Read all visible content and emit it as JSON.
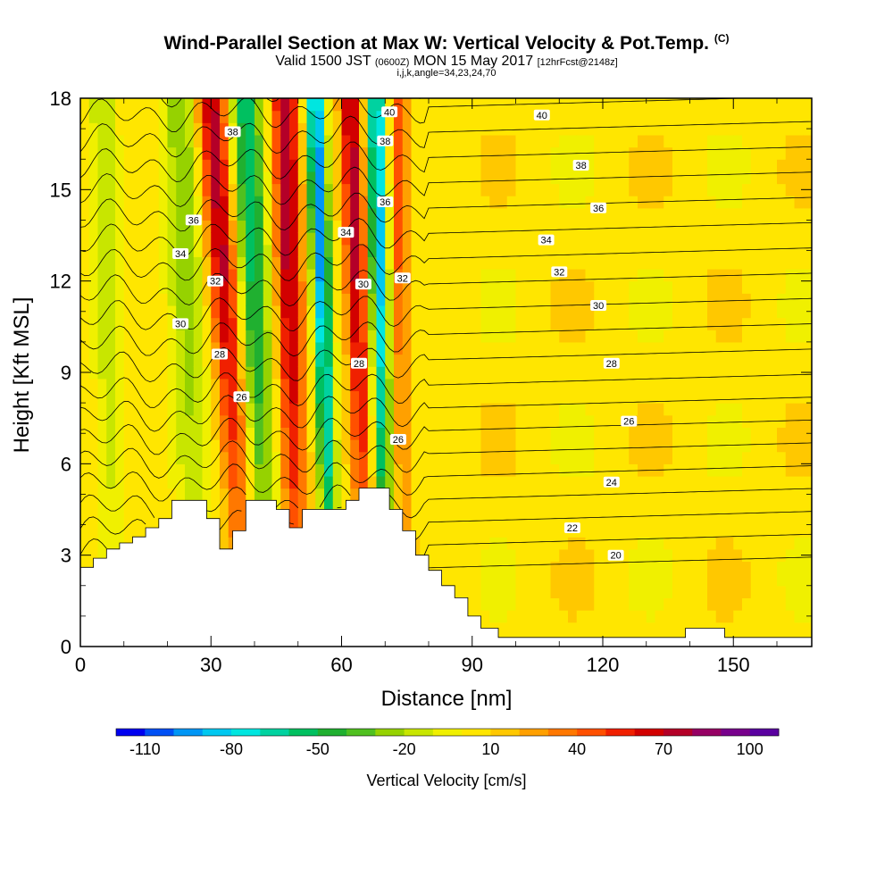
{
  "chart_data": {
    "type": "heatmap",
    "title": "Wind-Parallel Section at Max W: Vertical Velocity & Pot.Temp.",
    "title_mark": "(C)",
    "subtitle_main_a": "Valid 1500 JST",
    "subtitle_utc": "(0600Z)",
    "subtitle_main_b": "MON 15 May 2017",
    "subtitle_fcst": "[12hrFcst@2148z]",
    "subtitle2": "i,j,k,angle=34,23,24,70",
    "xlabel": "Distance [nm]",
    "ylabel": "Height [Kft MSL]",
    "xlim": [
      0,
      168
    ],
    "ylim": [
      0,
      18
    ],
    "x_ticks": [
      "0",
      "30",
      "60",
      "90",
      "120",
      "150"
    ],
    "x_tick_values": [
      0,
      30,
      60,
      90,
      120,
      150
    ],
    "y_ticks": [
      "0",
      "3",
      "6",
      "9",
      "12",
      "15",
      "18"
    ],
    "y_tick_values": [
      0,
      3,
      6,
      9,
      12,
      15,
      18
    ],
    "colorbar": {
      "label": "Vertical Velocity [cm/s]",
      "tick_labels": [
        "-110",
        "-80",
        "-50",
        "-20",
        "10",
        "40",
        "70",
        "100"
      ],
      "colors": [
        "#0000f0",
        "#0050f5",
        "#0096f5",
        "#00c8f0",
        "#00e6e0",
        "#00d2a0",
        "#00c060",
        "#20b030",
        "#50c020",
        "#96d200",
        "#c8e600",
        "#f0f000",
        "#ffe600",
        "#ffc800",
        "#ffa000",
        "#ff7800",
        "#ff5000",
        "#f02000",
        "#d20000",
        "#b40028",
        "#960064",
        "#78008c",
        "#5a00a0"
      ]
    },
    "background_velocity": 5,
    "updraft_bands": [
      {
        "x_top": 30,
        "x_bottom": 39,
        "width": 3.5,
        "w_max": 70
      },
      {
        "x_top": 47,
        "x_bottom": 50,
        "width": 3.0,
        "w_max": 75
      },
      {
        "x_top": 62,
        "x_bottom": 66,
        "width": 2.5,
        "w_max": 70
      },
      {
        "x_top": 73,
        "x_bottom": 75,
        "width": 2.0,
        "w_max": 40
      }
    ],
    "downdraft_bands": [
      {
        "x_top": 38,
        "x_bottom": 43,
        "width": 3.5,
        "w_min": -65
      },
      {
        "x_top": 54,
        "x_bottom": 58,
        "width": 2.0,
        "w_min": -105
      },
      {
        "x_top": 68,
        "x_bottom": 70,
        "width": 2.0,
        "w_min": -95
      },
      {
        "x_top": 23,
        "x_bottom": 27,
        "width": 4.0,
        "w_min": -35
      },
      {
        "x_top": 5,
        "x_bottom": 8,
        "width": 3.0,
        "w_min": -25
      }
    ],
    "theta_levels": [
      20,
      21,
      22,
      23,
      24,
      25,
      26,
      27,
      28,
      29,
      30,
      31,
      32,
      33,
      34,
      35,
      36,
      37,
      38,
      39,
      40
    ],
    "theta_labels": [
      {
        "text": "40",
        "x": 106,
        "y": 17.45
      },
      {
        "text": "38",
        "x": 115,
        "y": 15.8
      },
      {
        "text": "36",
        "x": 119,
        "y": 14.4
      },
      {
        "text": "34",
        "x": 107,
        "y": 13.35
      },
      {
        "text": "32",
        "x": 110,
        "y": 12.3
      },
      {
        "text": "30",
        "x": 119,
        "y": 11.2
      },
      {
        "text": "28",
        "x": 122,
        "y": 9.3
      },
      {
        "text": "26",
        "x": 126,
        "y": 7.4
      },
      {
        "text": "24",
        "x": 122,
        "y": 5.4
      },
      {
        "text": "22",
        "x": 113,
        "y": 3.9
      },
      {
        "text": "20",
        "x": 123,
        "y": 3.0
      },
      {
        "text": "40",
        "x": 71,
        "y": 17.55
      },
      {
        "text": "38",
        "x": 70,
        "y": 16.6
      },
      {
        "text": "36",
        "x": 70,
        "y": 14.6
      },
      {
        "text": "34",
        "x": 61,
        "y": 13.6
      },
      {
        "text": "32",
        "x": 74,
        "y": 12.1
      },
      {
        "text": "30",
        "x": 65,
        "y": 11.9
      },
      {
        "text": "28",
        "x": 64,
        "y": 9.3
      },
      {
        "text": "26",
        "x": 73,
        "y": 6.8
      },
      {
        "text": "38",
        "x": 35,
        "y": 16.9
      },
      {
        "text": "36",
        "x": 26,
        "y": 14.0
      },
      {
        "text": "34",
        "x": 23,
        "y": 12.9
      },
      {
        "text": "32",
        "x": 31,
        "y": 12.0
      },
      {
        "text": "30",
        "x": 23,
        "y": 10.6
      },
      {
        "text": "28",
        "x": 32,
        "y": 9.6
      },
      {
        "text": "26",
        "x": 37,
        "y": 8.2
      }
    ],
    "terrain": [
      [
        0,
        2.6
      ],
      [
        3,
        2.6
      ],
      [
        3,
        2.9
      ],
      [
        6,
        2.9
      ],
      [
        6,
        3.2
      ],
      [
        9,
        3.2
      ],
      [
        9,
        3.4
      ],
      [
        12,
        3.4
      ],
      [
        12,
        3.6
      ],
      [
        15,
        3.6
      ],
      [
        15,
        3.9
      ],
      [
        18,
        3.9
      ],
      [
        18,
        4.2
      ],
      [
        21,
        4.2
      ],
      [
        21,
        4.8
      ],
      [
        29,
        4.8
      ],
      [
        29,
        4.2
      ],
      [
        32,
        4.2
      ],
      [
        32,
        3.2
      ],
      [
        35,
        3.2
      ],
      [
        35,
        3.8
      ],
      [
        38,
        3.8
      ],
      [
        38,
        4.8
      ],
      [
        45,
        4.8
      ],
      [
        45,
        4.5
      ],
      [
        48,
        4.5
      ],
      [
        48,
        3.9
      ],
      [
        51,
        3.9
      ],
      [
        51,
        4.5
      ],
      [
        61,
        4.5
      ],
      [
        61,
        4.8
      ],
      [
        64,
        4.8
      ],
      [
        64,
        5.2
      ],
      [
        71,
        5.2
      ],
      [
        71,
        4.5
      ],
      [
        74,
        4.5
      ],
      [
        74,
        3.8
      ],
      [
        77,
        3.8
      ],
      [
        77,
        3.0
      ],
      [
        80,
        3.0
      ],
      [
        80,
        2.5
      ],
      [
        83,
        2.5
      ],
      [
        83,
        2.0
      ],
      [
        86,
        2.0
      ],
      [
        86,
        1.6
      ],
      [
        89,
        1.6
      ],
      [
        89,
        1.0
      ],
      [
        92,
        1.0
      ],
      [
        92,
        0.6
      ],
      [
        96,
        0.6
      ],
      [
        96,
        0.3
      ],
      [
        139,
        0.3
      ],
      [
        139,
        0.6
      ],
      [
        148,
        0.6
      ],
      [
        148,
        0.3
      ],
      [
        168,
        0.3
      ]
    ]
  }
}
